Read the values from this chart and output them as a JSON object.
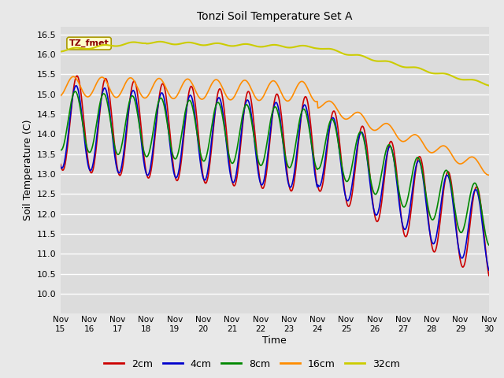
{
  "title": "Tonzi Soil Temperature Set A",
  "xlabel": "Time",
  "ylabel": "Soil Temperature (C)",
  "ylim": [
    9.5,
    16.7
  ],
  "annotation": "TZ_fmet",
  "annotation_color": "#8B0000",
  "annotation_bg": "#FFFFCC",
  "bg_color": "#E8E8E8",
  "plot_bg": "#DCDCDC",
  "series_colors": {
    "2cm": "#CC0000",
    "4cm": "#0000CC",
    "8cm": "#008800",
    "16cm": "#FF8C00",
    "32cm": "#CCCC00"
  },
  "xtick_labels": [
    "Nov 15",
    "Nov 16",
    "Nov 17",
    "Nov 18",
    "Nov 19",
    "Nov 20",
    "Nov 21",
    "Nov 22",
    "Nov 23",
    "Nov 24",
    "Nov 25",
    "Nov 26",
    "Nov 27",
    "Nov 28",
    "Nov 29",
    "Nov 30"
  ],
  "ytick_values": [
    10.0,
    10.5,
    11.0,
    11.5,
    12.0,
    12.5,
    13.0,
    13.5,
    14.0,
    14.5,
    15.0,
    15.5,
    16.0,
    16.5
  ]
}
